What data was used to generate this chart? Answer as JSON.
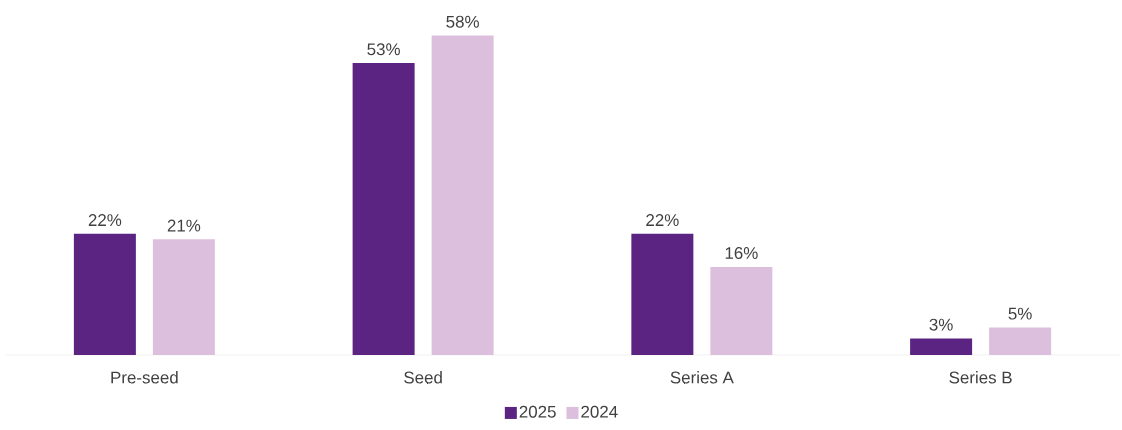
{
  "chart_data": {
    "type": "bar",
    "categories": [
      "Pre-seed",
      "Seed",
      "Series A",
      "Series B"
    ],
    "series": [
      {
        "name": "2025",
        "color": "#5b2382",
        "values": [
          22,
          53,
          22,
          3
        ],
        "value_labels": [
          "22%",
          "53%",
          "22%",
          "3%"
        ]
      },
      {
        "name": "2024",
        "color": "#dbbfdd",
        "values": [
          21,
          58,
          16,
          5
        ],
        "value_labels": [
          "21%",
          "58%",
          "16%",
          "5%"
        ]
      }
    ],
    "legend": "bottom"
  }
}
